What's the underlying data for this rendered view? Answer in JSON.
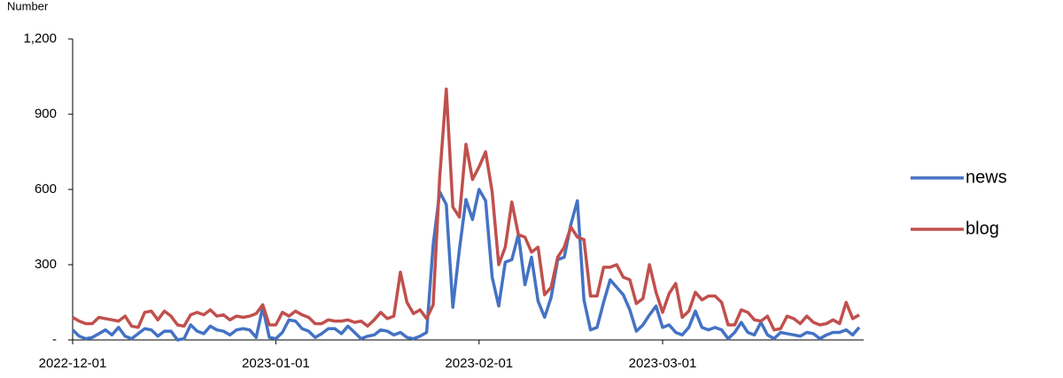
{
  "chart_data": {
    "type": "line",
    "y_label": "Number",
    "x": [
      "2022-12-01",
      "2022-12-02",
      "2022-12-03",
      "2022-12-04",
      "2022-12-05",
      "2022-12-06",
      "2022-12-07",
      "2022-12-08",
      "2022-12-09",
      "2022-12-10",
      "2022-12-11",
      "2022-12-12",
      "2022-12-13",
      "2022-12-14",
      "2022-12-15",
      "2022-12-16",
      "2022-12-17",
      "2022-12-18",
      "2022-12-19",
      "2022-12-20",
      "2022-12-21",
      "2022-12-22",
      "2022-12-23",
      "2022-12-24",
      "2022-12-25",
      "2022-12-26",
      "2022-12-27",
      "2022-12-28",
      "2022-12-29",
      "2022-12-30",
      "2022-12-31",
      "2023-01-01",
      "2023-01-02",
      "2023-01-03",
      "2023-01-04",
      "2023-01-05",
      "2023-01-06",
      "2023-01-07",
      "2023-01-08",
      "2023-01-09",
      "2023-01-10",
      "2023-01-11",
      "2023-01-12",
      "2023-01-13",
      "2023-01-14",
      "2023-01-15",
      "2023-01-16",
      "2023-01-17",
      "2023-01-18",
      "2023-01-19",
      "2023-01-20",
      "2023-01-21",
      "2023-01-22",
      "2023-01-23",
      "2023-01-24",
      "2023-01-25",
      "2023-01-26",
      "2023-01-27",
      "2023-01-28",
      "2023-01-29",
      "2023-01-30",
      "2023-01-31",
      "2023-02-01",
      "2023-02-02",
      "2023-02-03",
      "2023-02-04",
      "2023-02-05",
      "2023-02-06",
      "2023-02-07",
      "2023-02-08",
      "2023-02-09",
      "2023-02-10",
      "2023-02-11",
      "2023-02-12",
      "2023-02-13",
      "2023-02-14",
      "2023-02-15",
      "2023-02-16",
      "2023-02-17",
      "2023-02-18",
      "2023-02-19",
      "2023-02-20",
      "2023-02-21",
      "2023-02-22",
      "2023-02-23",
      "2023-02-24",
      "2023-02-25",
      "2023-02-26",
      "2023-02-27",
      "2023-02-28",
      "2023-03-01",
      "2023-03-02",
      "2023-03-03",
      "2023-03-04",
      "2023-03-05",
      "2023-03-06",
      "2023-03-07",
      "2023-03-08",
      "2023-03-09",
      "2023-03-10",
      "2023-03-11",
      "2023-03-12",
      "2023-03-13",
      "2023-03-14",
      "2023-03-15",
      "2023-03-16",
      "2023-03-17",
      "2023-03-18",
      "2023-03-19",
      "2023-03-20",
      "2023-03-21",
      "2023-03-22",
      "2023-03-23",
      "2023-03-24",
      "2023-03-25",
      "2023-03-26",
      "2023-03-27",
      "2023-03-28",
      "2023-03-29",
      "2023-03-30",
      "2023-03-31"
    ],
    "series": [
      {
        "name": "news",
        "color": "#4472c4",
        "values": [
          40,
          15,
          5,
          10,
          25,
          40,
          20,
          50,
          15,
          5,
          25,
          45,
          40,
          15,
          35,
          35,
          0,
          5,
          60,
          35,
          25,
          55,
          40,
          35,
          20,
          40,
          45,
          40,
          10,
          130,
          10,
          5,
          30,
          80,
          75,
          45,
          35,
          10,
          25,
          45,
          45,
          25,
          55,
          30,
          5,
          15,
          20,
          40,
          35,
          20,
          30,
          10,
          5,
          15,
          30,
          380,
          590,
          540,
          130,
          360,
          560,
          480,
          600,
          555,
          250,
          135,
          310,
          320,
          420,
          220,
          330,
          155,
          90,
          170,
          320,
          330,
          460,
          555,
          160,
          40,
          50,
          150,
          240,
          210,
          180,
          120,
          35,
          60,
          100,
          135,
          50,
          60,
          30,
          20,
          50,
          115,
          50,
          40,
          50,
          40,
          5,
          30,
          70,
          30,
          20,
          70,
          20,
          5,
          30,
          25,
          20,
          15,
          30,
          25,
          5,
          20,
          30,
          30,
          40,
          20,
          50
        ]
      },
      {
        "name": "blog",
        "color": "#c0504d",
        "values": [
          90,
          75,
          65,
          65,
          90,
          85,
          80,
          75,
          95,
          55,
          50,
          110,
          115,
          80,
          115,
          95,
          60,
          55,
          100,
          110,
          100,
          120,
          95,
          100,
          80,
          95,
          90,
          95,
          105,
          140,
          60,
          60,
          110,
          95,
          115,
          100,
          90,
          65,
          65,
          80,
          75,
          75,
          80,
          70,
          75,
          55,
          80,
          110,
          85,
          95,
          270,
          150,
          105,
          120,
          85,
          140,
          650,
          1000,
          530,
          490,
          780,
          640,
          690,
          750,
          590,
          300,
          370,
          550,
          420,
          410,
          350,
          370,
          180,
          210,
          330,
          370,
          450,
          410,
          400,
          175,
          175,
          290,
          290,
          300,
          250,
          240,
          145,
          165,
          300,
          190,
          110,
          185,
          225,
          90,
          115,
          190,
          160,
          175,
          175,
          150,
          60,
          60,
          120,
          110,
          80,
          75,
          95,
          40,
          45,
          95,
          85,
          65,
          95,
          70,
          60,
          65,
          80,
          65,
          150,
          85,
          100
        ]
      }
    ],
    "xlim": [
      "2022-12-01",
      "2023-03-31"
    ],
    "xticks": [
      "2022-12-01",
      "2023-01-01",
      "2023-02-01",
      "2023-03-01"
    ],
    "ylim": [
      0,
      1200
    ],
    "yticks": [
      {
        "value": 0,
        "label": "-"
      },
      300,
      600,
      900,
      {
        "value": 1200,
        "label": "1,200"
      }
    ],
    "legend": "right"
  }
}
